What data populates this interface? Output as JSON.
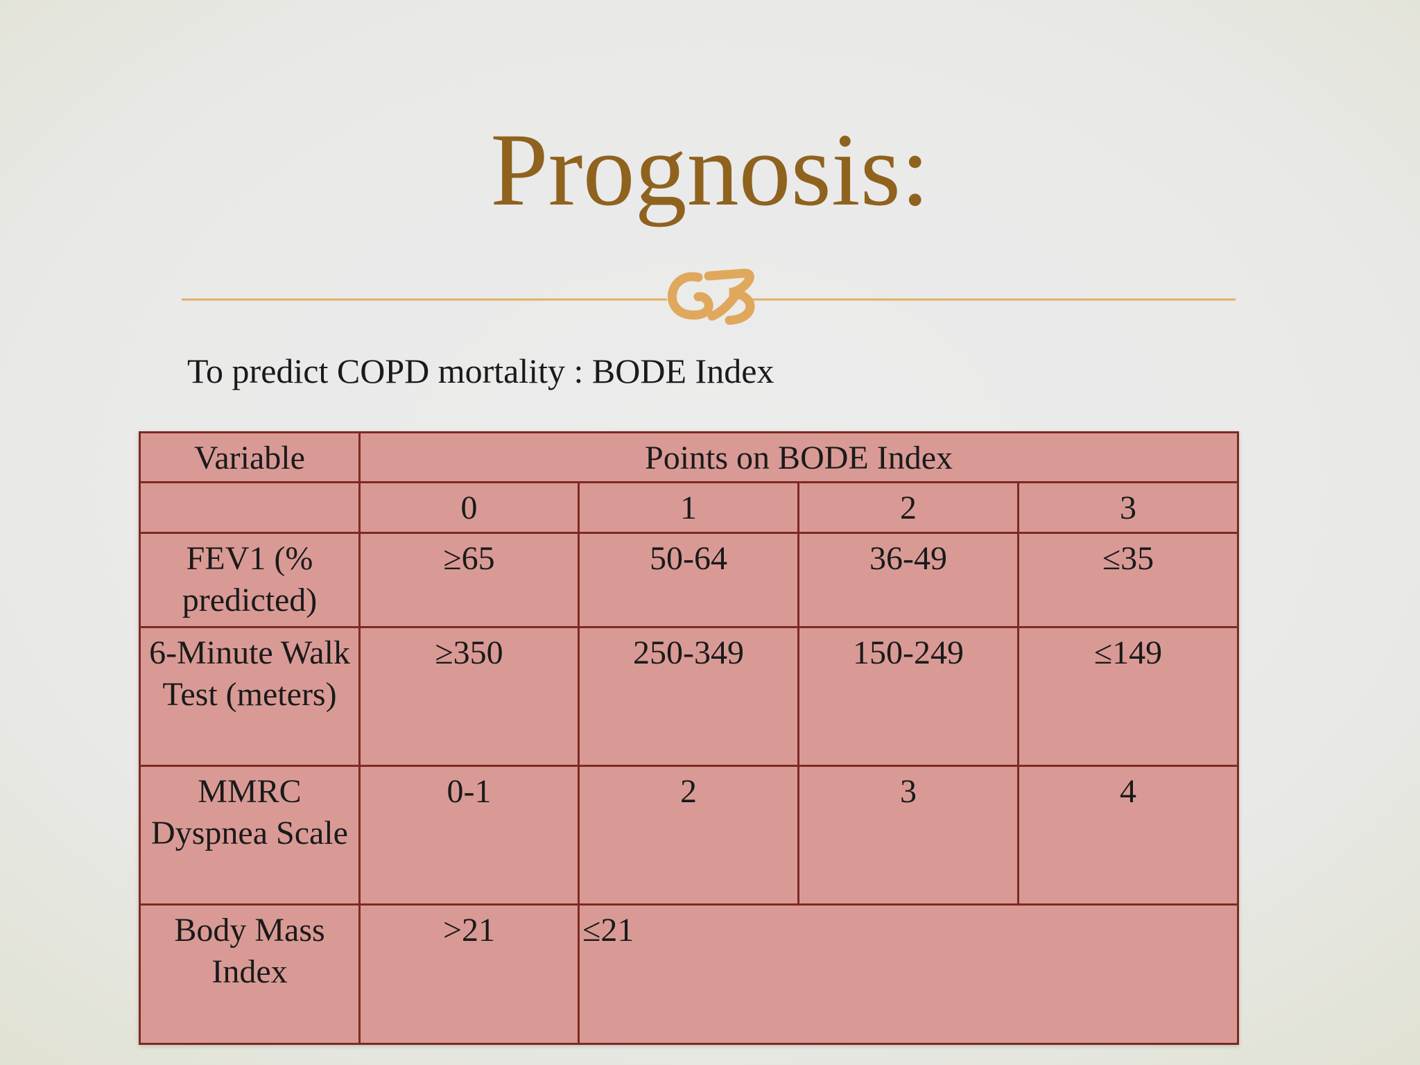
{
  "slide": {
    "title": "Prognosis:",
    "subtitle": "To predict COPD mortality : BODE Index",
    "ornament": "scroll-ornament-icon",
    "accent_color": "#8f621e",
    "rule_color": "#e0b066"
  },
  "table": {
    "header": {
      "variable": "Variable",
      "points": "Points on BODE Index"
    },
    "point_values": [
      "0",
      "1",
      "2",
      "3"
    ],
    "rows": [
      {
        "variable": "FEV1 (% predicted)",
        "values": [
          "≥65",
          "50-64",
          "36-49",
          "≤35"
        ]
      },
      {
        "variable": "6-Minute Walk Test (meters)",
        "values": [
          "≥350",
          "250-349",
          "150-249",
          "≤149"
        ]
      },
      {
        "variable": "MMRC Dyspnea Scale",
        "values": [
          "0-1",
          "2",
          "3",
          "4"
        ]
      },
      {
        "variable": "Body Mass Index",
        "values": [
          ">21",
          "≤21"
        ]
      }
    ],
    "colors": {
      "cell_fill": "#d99a95",
      "border": "#7c2a22"
    }
  }
}
